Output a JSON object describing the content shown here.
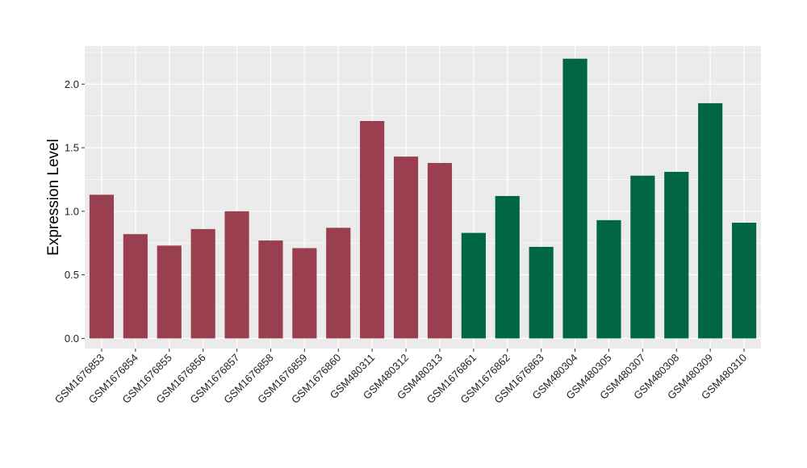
{
  "chart_data": {
    "type": "bar",
    "ylabel": "Expression Level",
    "xlabel": "",
    "ylim": [
      -0.08,
      2.3
    ],
    "yticks": [
      "0.0",
      "0.5",
      "1.0",
      "1.5",
      "2.0"
    ],
    "grid": true,
    "categories": [
      "GSM1676853",
      "GSM1676854",
      "GSM1676855",
      "GSM1676856",
      "GSM1676857",
      "GSM1676858",
      "GSM1676859",
      "GSM1676860",
      "GSM480311",
      "GSM480312",
      "GSM480313",
      "GSM1676861",
      "GSM1676862",
      "GSM1676863",
      "GSM480304",
      "GSM480305",
      "GSM480307",
      "GSM480308",
      "GSM480309",
      "GSM480310"
    ],
    "values": [
      1.13,
      0.82,
      0.73,
      0.86,
      1.0,
      0.77,
      0.71,
      0.87,
      1.71,
      1.43,
      1.38,
      0.83,
      1.12,
      0.72,
      2.2,
      0.93,
      1.28,
      1.31,
      1.85,
      0.91
    ],
    "groups": [
      0,
      0,
      0,
      0,
      0,
      0,
      0,
      0,
      0,
      0,
      0,
      1,
      1,
      1,
      1,
      1,
      1,
      1,
      1,
      1
    ],
    "colors": [
      "#9a3f4f",
      "#006644"
    ],
    "panel_color": "#ebebeb",
    "grid_color": "#ffffff"
  }
}
